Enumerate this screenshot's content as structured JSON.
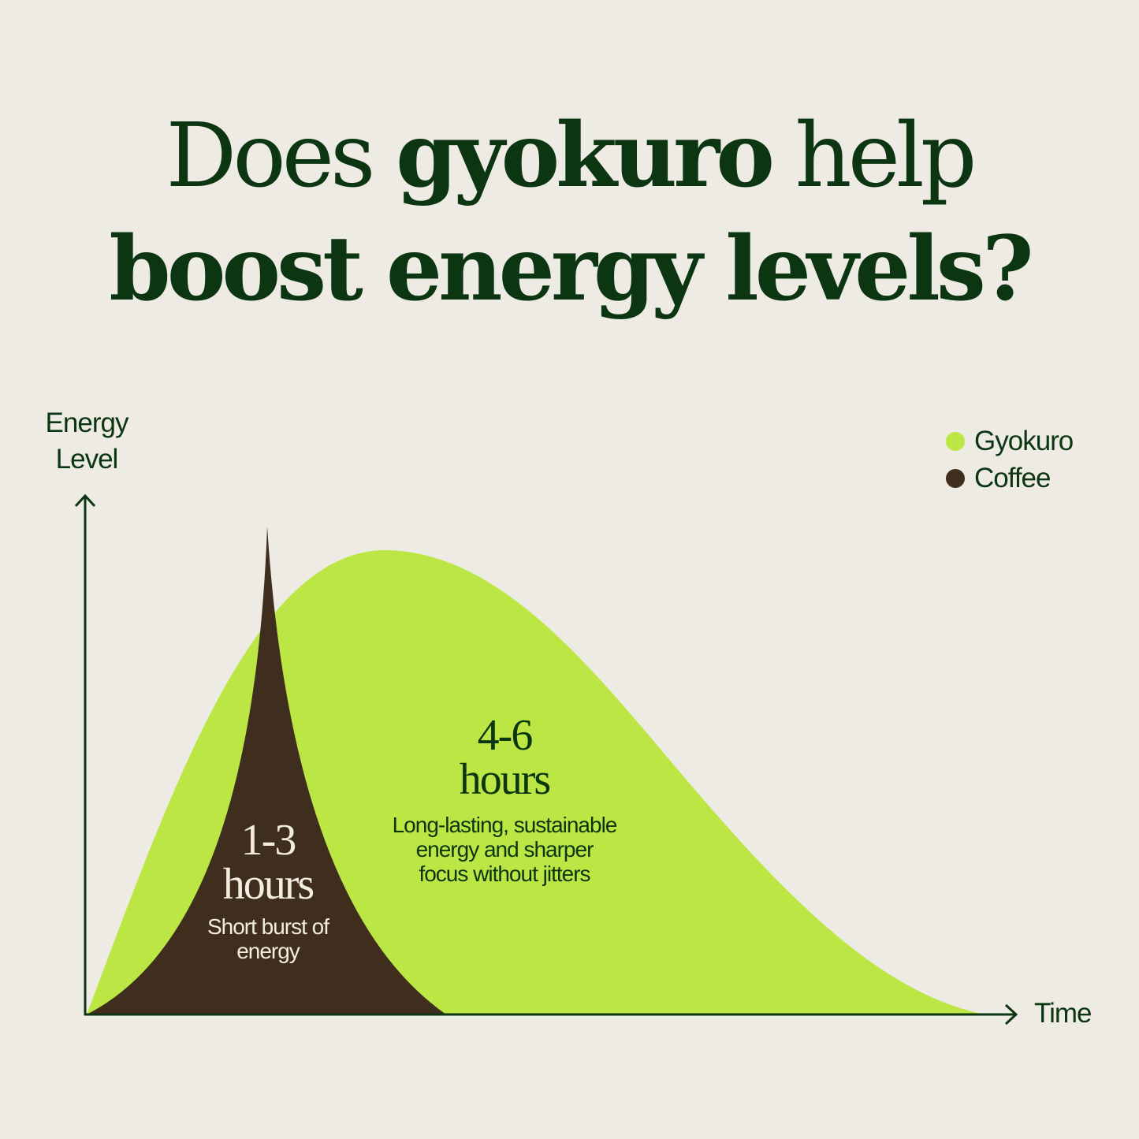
{
  "title": {
    "line1_pre": "Does ",
    "line1_bold": "gyokuro",
    "line1_post": " help",
    "line2": "boost energy levels?"
  },
  "chart_data": {
    "type": "area",
    "title": "Does gyokuro help boost energy levels?",
    "ylabel_line1": "Energy",
    "ylabel_line2": "Level",
    "xlabel": "Time",
    "grid": false,
    "legend_position": "top-right",
    "series": [
      {
        "name": "Gyokuro",
        "color": "#bce643",
        "shape": "broad smooth hump, long tail",
        "annotation": {
          "duration": "4-6",
          "unit": "hours",
          "desc1": "Long-lasting, sustainable",
          "desc2": "energy and sharper",
          "desc3": "focus without jitters"
        }
      },
      {
        "name": "Coffee",
        "color": "#3f2d1e",
        "shape": "sharp narrow spike",
        "annotation": {
          "duration": "1-3",
          "unit": "hours",
          "desc1": "Short burst of",
          "desc2": "energy"
        }
      }
    ]
  },
  "colors": {
    "axis": "#0c3512",
    "background": "#eeebe4"
  }
}
